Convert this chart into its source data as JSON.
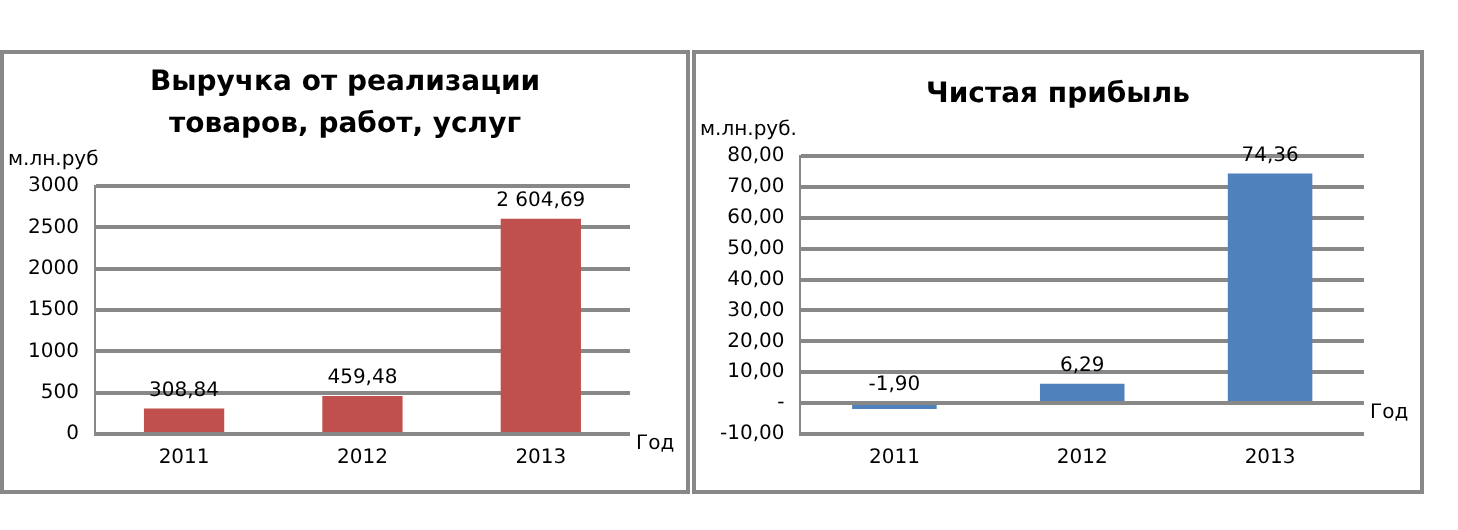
{
  "chart_data": [
    {
      "type": "bar",
      "title": "Выручка от реализации товаров, работ, услуг",
      "ylabel": "м.лн.руб",
      "xlabel": "Год",
      "categories": [
        "2011",
        "2012",
        "2013"
      ],
      "series": [
        {
          "color": "#c0504d",
          "values": [
            308.84,
            459.48,
            2604.69
          ],
          "value_labels": [
            "308,84",
            "459,48",
            "2 604,69"
          ]
        }
      ],
      "ylim": [
        0,
        3000
      ],
      "yticks": [
        0,
        500,
        1000,
        1500,
        2000,
        2500,
        3000
      ],
      "grid": "y"
    },
    {
      "type": "bar",
      "title": "Чистая прибыль",
      "ylabel": "м.лн.руб.",
      "xlabel": "Год",
      "categories": [
        "2011",
        "2012",
        "2013"
      ],
      "series": [
        {
          "color": "#4f81bd",
          "values": [
            -1.9,
            6.29,
            74.36
          ],
          "value_labels": [
            "-1,90",
            "6,29",
            "74,36"
          ]
        }
      ],
      "ylim": [
        -10,
        80
      ],
      "yticks": [
        {
          "value": -10,
          "label": "-10,00"
        },
        {
          "value": 0,
          "label": "-"
        },
        {
          "value": 10,
          "label": "10,00"
        },
        {
          "value": 20,
          "label": "20,00"
        },
        {
          "value": 30,
          "label": "30,00"
        },
        {
          "value": 40,
          "label": "40,00"
        },
        {
          "value": 50,
          "label": "50,00"
        },
        {
          "value": 60,
          "label": "60,00"
        },
        {
          "value": 70,
          "label": "70,00"
        },
        {
          "value": 80,
          "label": "80,00"
        }
      ],
      "grid": "y"
    }
  ]
}
